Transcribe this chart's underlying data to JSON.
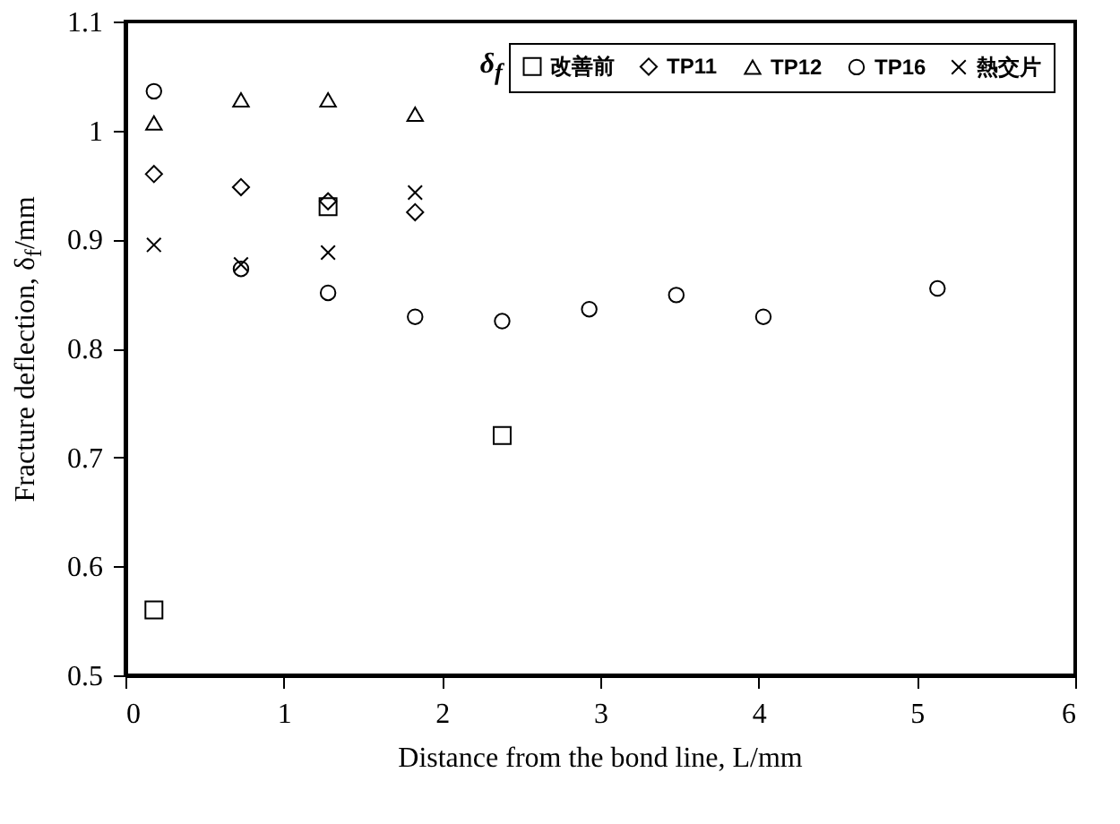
{
  "chart_data": {
    "type": "scatter",
    "xlabel": "Distance from the bond line, L/mm",
    "ylabel": "Fracture deflection, δ$_{f}$/mm",
    "legend_title": "δ$_{f}$",
    "xlim": [
      0,
      6
    ],
    "xticks": [
      0,
      1,
      2,
      3,
      4,
      5,
      6
    ],
    "ylim": [
      0.5,
      1.1
    ],
    "yticks": [
      0.5,
      0.6,
      0.7,
      0.8,
      0.9,
      1,
      1.1
    ],
    "grid": false,
    "legend": "top right",
    "series": [
      {
        "name": "改善前",
        "color": "#000000",
        "marker": "square",
        "x": [
          0.18,
          1.28,
          2.38
        ],
        "values": [
          0.56,
          0.93,
          0.72
        ]
      },
      {
        "name": "TP11",
        "color": "#000000",
        "marker": "diamond",
        "x": [
          0.18,
          0.73,
          1.28,
          1.83
        ],
        "values": [
          0.96,
          0.948,
          0.935,
          0.925
        ]
      },
      {
        "name": "TP12",
        "color": "#000000",
        "marker": "triangle",
        "x": [
          0.18,
          0.73,
          1.28,
          1.83
        ],
        "values": [
          1.007,
          1.028,
          1.028,
          1.015
        ]
      },
      {
        "name": "TP16",
        "color": "#000000",
        "marker": "circle",
        "x": [
          0.18,
          0.73,
          1.28,
          1.83,
          2.38,
          2.93,
          3.48,
          4.03,
          5.13
        ],
        "values": [
          1.036,
          0.873,
          0.851,
          0.829,
          0.825,
          0.836,
          0.849,
          0.829,
          0.855
        ]
      },
      {
        "name": "熱交片",
        "color": "#000000",
        "marker": "cross",
        "x": [
          0.18,
          0.73,
          1.28,
          1.83
        ],
        "values": [
          0.895,
          0.877,
          0.888,
          0.943
        ]
      }
    ]
  }
}
